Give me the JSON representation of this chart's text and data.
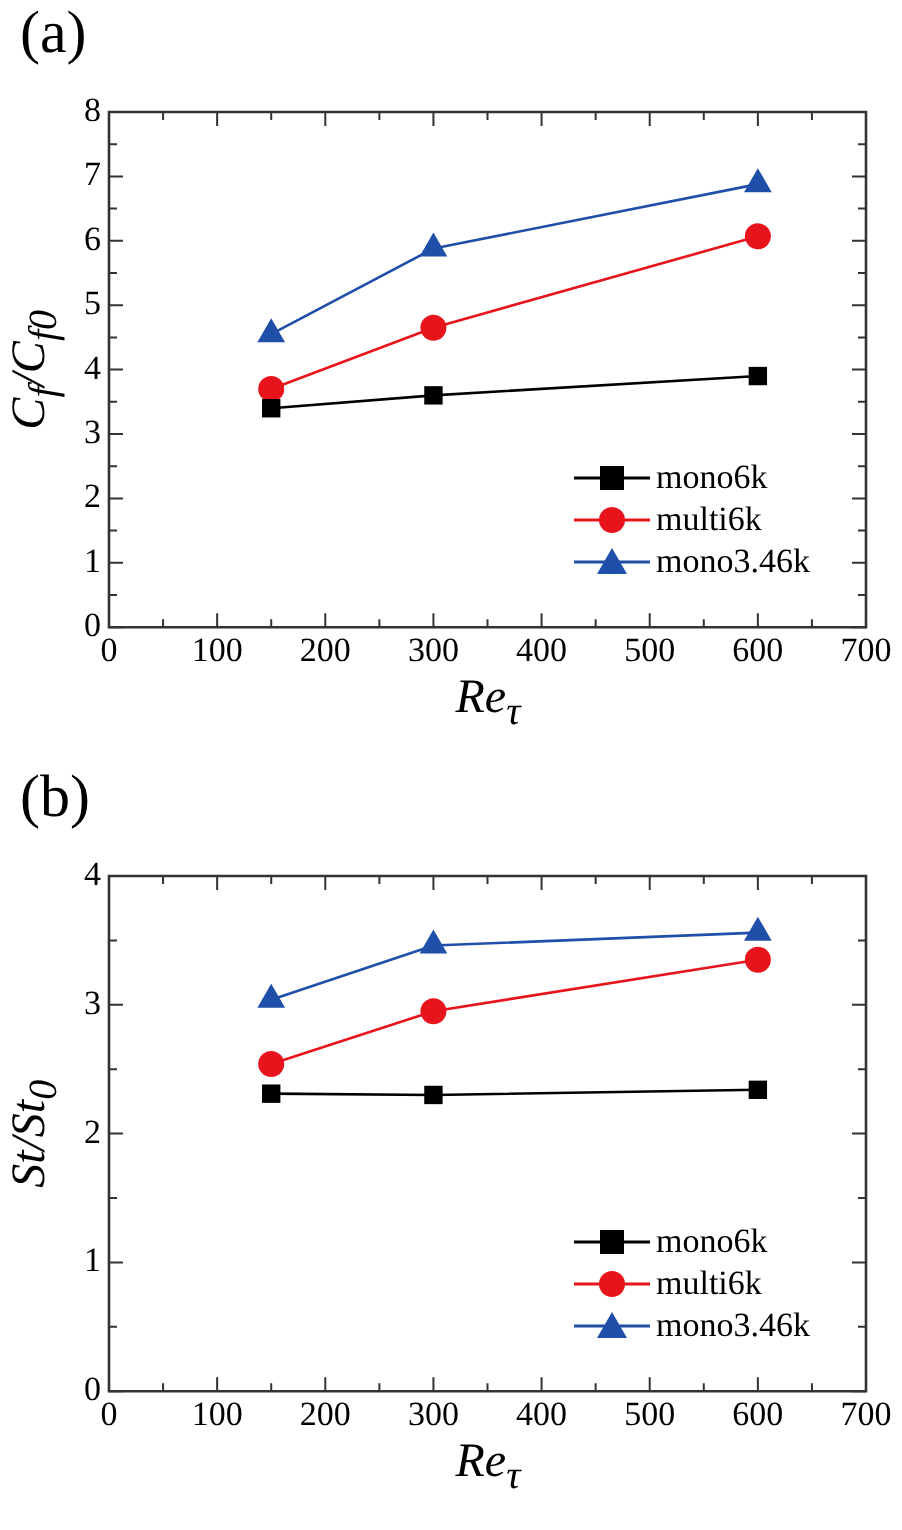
{
  "chart_data": [
    {
      "type": "line",
      "title": "(a)",
      "xlabel": "Re$_{τ}$",
      "ylabel": "C$_{f}$/C$_{f0}$",
      "x": [
        150,
        300,
        600
      ],
      "xlim": [
        0,
        700
      ],
      "xticks": [
        0,
        {
          "value": 50,
          "label": null
        },
        100,
        {
          "value": 150,
          "label": null
        },
        200,
        {
          "value": 250,
          "label": null
        },
        300,
        {
          "value": 350,
          "label": null
        },
        400,
        {
          "value": 450,
          "label": null
        },
        500,
        {
          "value": 550,
          "label": null
        },
        600,
        {
          "value": 650,
          "label": null
        },
        700
      ],
      "ylim": [
        0,
        8
      ],
      "yticks": [
        0,
        {
          "value": 0.5,
          "label": null
        },
        1,
        {
          "value": 1.5,
          "label": null
        },
        2,
        {
          "value": 2.5,
          "label": null
        },
        3,
        {
          "value": 3.5,
          "label": null
        },
        4,
        {
          "value": 4.5,
          "label": null
        },
        5,
        {
          "value": 5.5,
          "label": null
        },
        6,
        {
          "value": 6.5,
          "label": null
        },
        7,
        {
          "value": 7.5,
          "label": null
        },
        8
      ],
      "legend": "bottom right",
      "line_style": "solid",
      "series": [
        {
          "name": "mono6k",
          "color": "#000000",
          "marker": "square",
          "values": [
            3.4,
            3.6,
            3.9
          ]
        },
        {
          "name": "multi6k",
          "color": "#e8141c",
          "marker": "circle",
          "values": [
            3.7,
            4.65,
            6.07
          ]
        },
        {
          "name": "mono3.46k",
          "color": "#1f4fa8",
          "marker": "triangle",
          "values": [
            4.55,
            5.88,
            6.88
          ]
        }
      ]
    },
    {
      "type": "line",
      "title": "(b)",
      "xlabel": "Re$_{τ}$",
      "ylabel": "St/St$_{0}$",
      "x": [
        150,
        300,
        600
      ],
      "xlim": [
        0,
        700
      ],
      "xticks": [
        0,
        {
          "value": 50,
          "label": null
        },
        100,
        {
          "value": 150,
          "label": null
        },
        200,
        {
          "value": 250,
          "label": null
        },
        300,
        {
          "value": 350,
          "label": null
        },
        400,
        {
          "value": 450,
          "label": null
        },
        500,
        {
          "value": 550,
          "label": null
        },
        600,
        {
          "value": 650,
          "label": null
        },
        700
      ],
      "ylim": [
        0,
        4
      ],
      "yticks": [
        0,
        {
          "value": 0.5,
          "label": null
        },
        1,
        {
          "value": 1.5,
          "label": null
        },
        2,
        {
          "value": 2.5,
          "label": null
        },
        3,
        {
          "value": 3.5,
          "label": null
        },
        4
      ],
      "legend": "bottom right",
      "line_style": "solid",
      "series": [
        {
          "name": "mono6k",
          "color": "#000000",
          "marker": "square",
          "values": [
            2.31,
            2.3,
            2.34
          ]
        },
        {
          "name": "multi6k",
          "color": "#e8141c",
          "marker": "circle",
          "values": [
            2.54,
            2.95,
            3.35
          ]
        },
        {
          "name": "mono3.46k",
          "color": "#1f4fa8",
          "marker": "triangle",
          "values": [
            3.04,
            3.46,
            3.56
          ]
        }
      ]
    }
  ]
}
